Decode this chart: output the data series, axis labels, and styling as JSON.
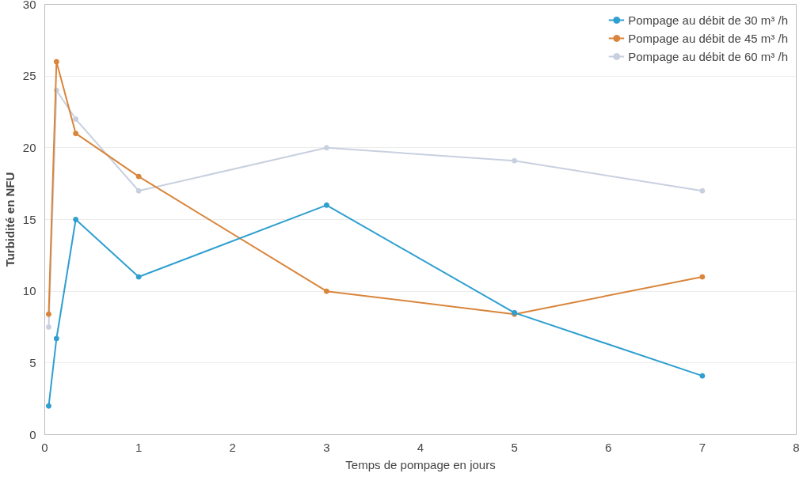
{
  "chart_data": {
    "type": "line",
    "xlabel": "Temps de pompage en jours",
    "ylabel": "Turbidité en NFU",
    "x": [
      0.042,
      0.125,
      0.33,
      1,
      3,
      5,
      7
    ],
    "series": [
      {
        "name": "Pompage au débit de 30 m³ /h",
        "color": "#2e9fd0",
        "values": [
          2,
          6.7,
          15,
          11,
          16,
          8.5,
          4.1
        ]
      },
      {
        "name": "Pompage au débit de 45 m³ /h",
        "color": "#d9853b",
        "values": [
          8.4,
          26,
          21,
          18,
          10,
          8.4,
          11
        ]
      },
      {
        "name": "Pompage au débit de 60 m³ /h",
        "color": "#c8d0e0",
        "values": [
          7.5,
          24,
          22,
          17,
          20,
          19.1,
          17
        ]
      }
    ],
    "xlim": [
      0,
      8
    ],
    "xticks": [
      0,
      1,
      2,
      3,
      4,
      5,
      6,
      7,
      8
    ],
    "ylim": [
      0,
      30
    ],
    "yticks": [
      0,
      5,
      10,
      15,
      20,
      25,
      30
    ],
    "grid": "y",
    "legend": "top right",
    "marker": "circle",
    "line_style": "solid"
  }
}
